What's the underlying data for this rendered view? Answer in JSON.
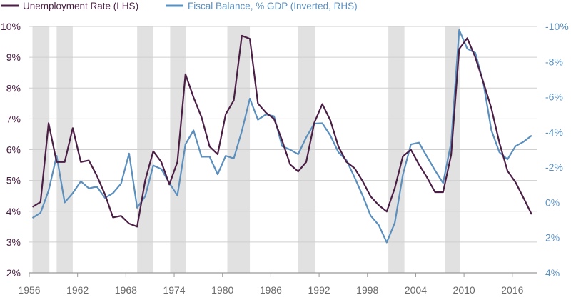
{
  "chart_data": {
    "type": "line",
    "title": "",
    "legend": [
      {
        "name": "Unemployment Rate (LHS)",
        "color": "#4b1f45"
      },
      {
        "name": "Fiscal Balance, % GDP (Inverted, RHS)",
        "color": "#5b8fbd"
      }
    ],
    "legend_position": "top-left",
    "x_ticks": [
      "1956",
      "1962",
      "1968",
      "1974",
      "1980",
      "1986",
      "1992",
      "1998",
      "2004",
      "2010",
      "2016"
    ],
    "x_range": [
      1956,
      2019
    ],
    "left_axis": {
      "ticks": [
        "10%",
        "9%",
        "8%",
        "7%",
        "6%",
        "5%",
        "4%",
        "3%",
        "2%"
      ],
      "values": [
        10,
        9,
        8,
        7,
        6,
        5,
        4,
        3,
        2
      ],
      "range": [
        2,
        10
      ]
    },
    "right_axis": {
      "ticks": [
        "-10%",
        "-8%",
        "-6%",
        "-4%",
        "-2%",
        "0%",
        "2%",
        "4%"
      ],
      "values": [
        -10,
        -8,
        -6,
        -4,
        -2,
        0,
        2,
        4
      ],
      "range": [
        -10,
        4
      ],
      "inverted": true
    },
    "recessions": [
      [
        1956.4,
        1958.5
      ],
      [
        1959.4,
        1961.4
      ],
      [
        1969.4,
        1971.4
      ],
      [
        1973.5,
        1975.5
      ],
      [
        1980.6,
        1983.4
      ],
      [
        1989.4,
        1991.5
      ],
      [
        2000.6,
        2002.6
      ],
      [
        2007.6,
        2009.5
      ]
    ],
    "x": [
      1956,
      1957,
      1958,
      1959,
      1960,
      1961,
      1962,
      1963,
      1964,
      1965,
      1966,
      1967,
      1968,
      1969,
      1970,
      1971,
      1972,
      1973,
      1974,
      1975,
      1976,
      1977,
      1978,
      1979,
      1980,
      1981,
      1982,
      1983,
      1984,
      1985,
      1986,
      1987,
      1988,
      1989,
      1990,
      1991,
      1992,
      1993,
      1994,
      1995,
      1996,
      1997,
      1998,
      1999,
      2000,
      2001,
      2002,
      2003,
      2004,
      2005,
      2006,
      2007,
      2008,
      2009,
      2010,
      2011,
      2012,
      2013,
      2014,
      2015,
      2016,
      2017,
      2018
    ],
    "series": [
      {
        "name": "Unemployment Rate (LHS)",
        "axis": "left",
        "values": [
          4.14,
          4.3,
          6.86,
          5.6,
          5.6,
          6.7,
          5.6,
          5.65,
          5.15,
          4.55,
          3.8,
          3.85,
          3.6,
          3.5,
          5.0,
          5.95,
          5.6,
          4.87,
          5.6,
          8.45,
          7.7,
          7.05,
          6.1,
          5.85,
          7.15,
          7.6,
          9.7,
          9.6,
          7.5,
          7.2,
          7.0,
          6.3,
          5.52,
          5.29,
          5.6,
          6.87,
          7.48,
          6.95,
          6.1,
          5.6,
          5.4,
          4.98,
          4.48,
          4.2,
          3.99,
          4.75,
          5.78,
          6.0,
          5.52,
          5.1,
          4.62,
          4.62,
          5.83,
          9.27,
          9.62,
          9.0,
          8.19,
          7.34,
          6.22,
          5.31,
          4.94,
          4.43,
          3.9
        ]
      },
      {
        "name": "Fiscal Balance, % GDP (Inverted, RHS)",
        "axis": "right",
        "values": [
          0.88,
          0.59,
          -0.67,
          -2.65,
          0.0,
          -0.53,
          -1.2,
          -0.8,
          -0.9,
          -0.26,
          -0.53,
          -1.07,
          -2.78,
          0.3,
          -0.35,
          -2.1,
          -1.9,
          -1.1,
          -0.4,
          -3.3,
          -4.1,
          -2.6,
          -2.6,
          -1.6,
          -2.65,
          -2.5,
          -4.05,
          -5.9,
          -4.7,
          -5.0,
          -4.9,
          -3.2,
          -3.0,
          -2.74,
          -3.7,
          -4.48,
          -4.5,
          -3.8,
          -2.85,
          -2.4,
          -1.43,
          -0.4,
          0.75,
          1.28,
          2.27,
          1.16,
          -1.56,
          -3.3,
          -3.4,
          -2.6,
          -1.82,
          -1.1,
          -3.4,
          -9.8,
          -8.74,
          -8.5,
          -6.8,
          -4.1,
          -2.85,
          -2.45,
          -3.2,
          -3.45,
          -3.8
        ]
      }
    ]
  }
}
